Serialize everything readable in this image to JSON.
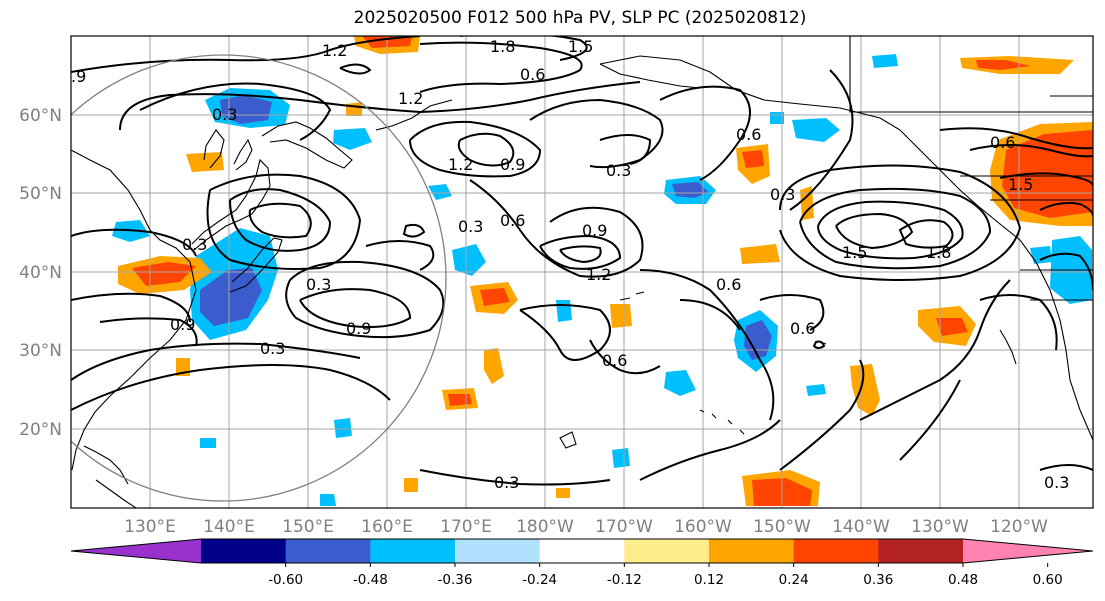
{
  "title": "2025020500 F012 500 hPa PV, SLP PC (2025020812)",
  "lat_labels": [
    "60°N",
    "50°N",
    "40°N",
    "30°N",
    "20°N"
  ],
  "lon_labels": [
    "130°E",
    "140°E",
    "150°E",
    "160°E",
    "170°E",
    "180°W",
    "170°W",
    "160°W",
    "150°W",
    "140°W",
    "130°W",
    "120°W"
  ],
  "colorbar": {
    "colors": [
      "#9932cc",
      "#00008b",
      "#3a5ccd",
      "#00bfff",
      "#b0e2ff",
      "#ffffff",
      "#ffec8b",
      "#ffa500",
      "#ff4500",
      "#b22222",
      "#ff83b0"
    ],
    "tick_labels": [
      "-0.60",
      "-0.48",
      "-0.36",
      "-0.24",
      "-0.12",
      "0.12",
      "0.24",
      "0.36",
      "0.48",
      "0.60"
    ]
  },
  "contour_labels": [
    {
      "text": "1.2"
    },
    {
      "text": "1.8"
    },
    {
      "text": "1.5"
    },
    {
      "text": "0.6"
    },
    {
      "text": ".9"
    },
    {
      "text": "1.2"
    },
    {
      "text": "0.3"
    },
    {
      "text": "1.2"
    },
    {
      "text": "0.9"
    },
    {
      "text": "0.3"
    },
    {
      "text": "0.6"
    },
    {
      "text": "0.3"
    },
    {
      "text": "0.9"
    },
    {
      "text": "1.2"
    },
    {
      "text": "0.3"
    },
    {
      "text": "0.6"
    },
    {
      "text": "0.6"
    },
    {
      "text": "0.3"
    },
    {
      "text": "0.9"
    },
    {
      "text": "0.3"
    },
    {
      "text": "0.6"
    },
    {
      "text": "0.3"
    },
    {
      "text": "0.3"
    },
    {
      "text": "1.5"
    },
    {
      "text": "1.8"
    },
    {
      "text": "0.6"
    },
    {
      "text": "1.5"
    },
    {
      "text": "0.6"
    },
    {
      "text": "0.9"
    },
    {
      "text": "0.3"
    }
  ]
}
